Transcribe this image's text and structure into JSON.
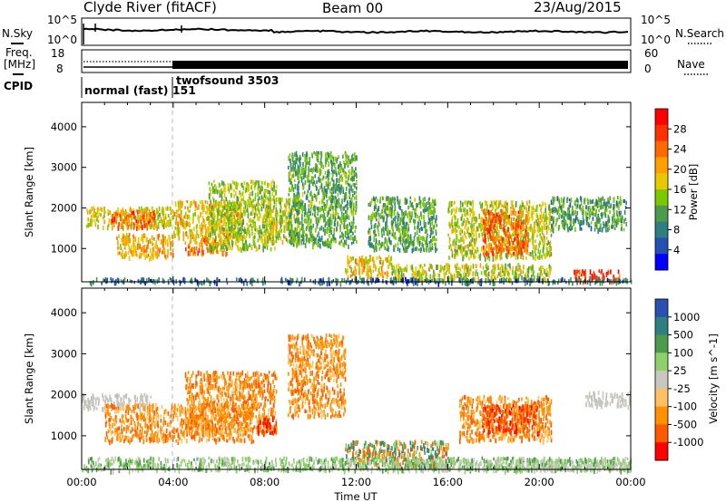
{
  "header": {
    "station": "Clyde River (fitACF)",
    "beam": "Beam 00",
    "date": "23/Aug/2015"
  },
  "top_panels": {
    "nsky_label": "N.Sky",
    "nsky_scale_top": "10^5",
    "nsky_scale_bottom": "10^0",
    "nsearch_label": "N.Search",
    "nsearch_scale_top": "10^5",
    "nsearch_scale_bottom": "10^0",
    "freq_label_1": "Freq.",
    "freq_label_2": "[MHz]",
    "freq_scale_top": "18",
    "freq_scale_bottom": "8",
    "nave_label": "Nave",
    "nave_scale_top": "60",
    "nave_scale_bottom": "0",
    "cpid_label": "CPID",
    "cpid_mode_1": "normal (fast) 151",
    "cpid_mode_2": "twofsound 3503"
  },
  "chart_data": [
    {
      "type": "heatmap",
      "name": "power",
      "ylabel": "Slant Range [km]",
      "xlabel": "",
      "yticks": [
        1000,
        2000,
        3000,
        4000
      ],
      "ylim": [
        180,
        4600
      ],
      "xlim_hours": [
        0,
        24
      ],
      "colorbar_label": "Power [dB]",
      "colorbar_ticks": [
        "28",
        "24",
        "20",
        "16",
        "12",
        "8",
        "4"
      ],
      "colorbar_colors": [
        "#ff0000",
        "#ff3000",
        "#ff6a00",
        "#ffa000",
        "#e8c800",
        "#7cc800",
        "#4c9a4c",
        "#2e7f7f",
        "#2450b0",
        "#0000ff"
      ],
      "mode_change_hour": 4.0,
      "echo_regions": [
        {
          "t": [
            0.2,
            4.0
          ],
          "r": [
            1550,
            2050
          ],
          "level": 0.55
        },
        {
          "t": [
            1.3,
            3.2
          ],
          "r": [
            1550,
            1950
          ],
          "level": 0.8
        },
        {
          "t": [
            1.5,
            4.0
          ],
          "r": [
            800,
            1400
          ],
          "level": 0.65
        },
        {
          "t": [
            4.0,
            7.0
          ],
          "r": [
            1300,
            2200
          ],
          "level": 0.6
        },
        {
          "t": [
            4.5,
            6.5
          ],
          "r": [
            900,
            1300
          ],
          "level": 0.75
        },
        {
          "t": [
            5.5,
            8.5
          ],
          "r": [
            1000,
            2700
          ],
          "level": 0.45
        },
        {
          "t": [
            8.0,
            9.5
          ],
          "r": [
            1200,
            2300
          ],
          "level": 0.5
        },
        {
          "t": [
            9.0,
            12.0
          ],
          "r": [
            1100,
            3400
          ],
          "level": 0.35
        },
        {
          "t": [
            11.5,
            13.5
          ],
          "r": [
            300,
            850
          ],
          "level": 0.6
        },
        {
          "t": [
            13.5,
            20.5
          ],
          "r": [
            250,
            650
          ],
          "level": 0.5
        },
        {
          "t": [
            12.5,
            15.5
          ],
          "r": [
            1000,
            2300
          ],
          "level": 0.35
        },
        {
          "t": [
            16.0,
            20.5
          ],
          "r": [
            800,
            2200
          ],
          "level": 0.5
        },
        {
          "t": [
            17.5,
            19.5
          ],
          "r": [
            900,
            2000
          ],
          "level": 0.8
        },
        {
          "t": [
            20.5,
            23.8
          ],
          "r": [
            1500,
            2300
          ],
          "level": 0.3
        },
        {
          "t": [
            21.5,
            23.5
          ],
          "r": [
            200,
            500
          ],
          "level": 0.85
        },
        {
          "t": [
            0.1,
            24.0
          ],
          "r": [
            180,
            300
          ],
          "level": 0.2
        }
      ]
    },
    {
      "type": "heatmap",
      "name": "velocity",
      "ylabel": "Slant Range [km]",
      "xlabel": "Time UT",
      "xticks": [
        "00:00",
        "04:00",
        "08:00",
        "12:00",
        "16:00",
        "20:00",
        "00:00"
      ],
      "xtick_hours": [
        0,
        4,
        8,
        12,
        16,
        20,
        24
      ],
      "yticks": [
        1000,
        2000,
        3000,
        4000
      ],
      "ylim": [
        180,
        4600
      ],
      "xlim_hours": [
        0,
        24
      ],
      "colorbar_label": "Velocity [m s^-1]",
      "colorbar_ticks": [
        "1000",
        "500",
        "100",
        "25",
        "-25",
        "-100",
        "-500",
        "-1000"
      ],
      "colorbar_colors": [
        "#2a50b0",
        "#2e7f7f",
        "#4c9a4c",
        "#8ed06a",
        "#c8c8c0",
        "#ffc060",
        "#ff9000",
        "#ff5a00",
        "#ff0000"
      ],
      "mode_change_hour": 4.0,
      "echo_regions": [
        {
          "t": [
            0.0,
            3.0
          ],
          "r": [
            1700,
            2050
          ],
          "class": "ground"
        },
        {
          "t": [
            22.0,
            24.0
          ],
          "r": [
            1750,
            2100
          ],
          "class": "ground"
        },
        {
          "t": [
            13.5,
            24.0
          ],
          "r": [
            200,
            450
          ],
          "class": "ground"
        },
        {
          "t": [
            1.0,
            7.5
          ],
          "r": [
            900,
            1800
          ],
          "class": "neg"
        },
        {
          "t": [
            4.5,
            8.5
          ],
          "r": [
            1100,
            2600
          ],
          "class": "neg"
        },
        {
          "t": [
            7.5,
            8.5
          ],
          "r": [
            1100,
            1500
          ],
          "class": "strongneg"
        },
        {
          "t": [
            16.5,
            20.5
          ],
          "r": [
            900,
            2000
          ],
          "class": "neg"
        },
        {
          "t": [
            17.5,
            20.0
          ],
          "r": [
            1100,
            1800
          ],
          "class": "strongneg"
        },
        {
          "t": [
            11.5,
            16.0
          ],
          "r": [
            300,
            900
          ],
          "class": "mixed"
        },
        {
          "t": [
            0.0,
            24.0
          ],
          "r": [
            180,
            500
          ],
          "class": "lowpos"
        },
        {
          "t": [
            9.0,
            11.5
          ],
          "r": [
            1500,
            3500
          ],
          "class": "neg"
        }
      ]
    }
  ]
}
